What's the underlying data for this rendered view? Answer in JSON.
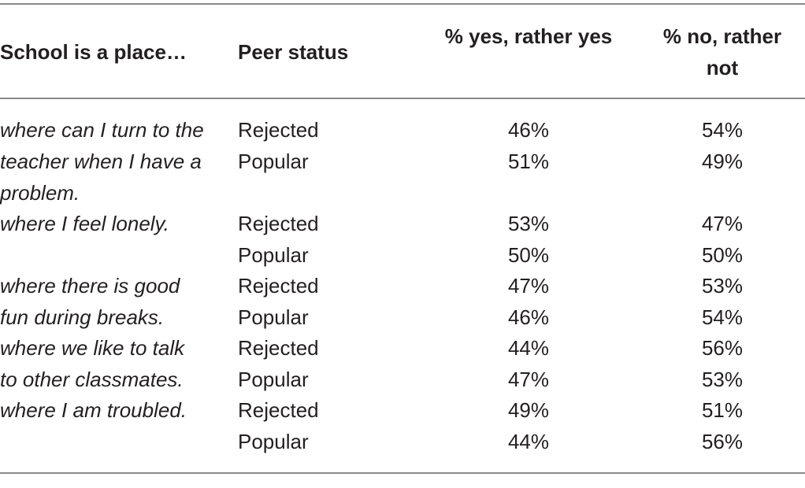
{
  "table": {
    "headers": {
      "col1": "School is a place…",
      "col2": "Peer status",
      "col3": "% yes, rather yes",
      "col4": "% no, rather not"
    },
    "items": [
      "where can I turn to the teacher when I have a problem.",
      "where I feel lonely.",
      "where there is good fun during breaks.",
      "where we like to talk to other classmates.",
      "where I am troubled."
    ],
    "rows": [
      {
        "status": "Rejected",
        "yes": "46%",
        "no": "54%"
      },
      {
        "status": "Popular",
        "yes": "51%",
        "no": "49%"
      },
      {
        "status": "Rejected",
        "yes": "53%",
        "no": "47%"
      },
      {
        "status": "Popular",
        "yes": "50%",
        "no": "50%"
      },
      {
        "status": "Rejected",
        "yes": "47%",
        "no": "53%"
      },
      {
        "status": "Popular",
        "yes": "46%",
        "no": "54%"
      },
      {
        "status": "Rejected",
        "yes": "44%",
        "no": "56%"
      },
      {
        "status": "Popular",
        "yes": "47%",
        "no": "53%"
      },
      {
        "status": "Rejected",
        "yes": "49%",
        "no": "51%"
      },
      {
        "status": "Popular",
        "yes": "44%",
        "no": "56%"
      }
    ]
  }
}
